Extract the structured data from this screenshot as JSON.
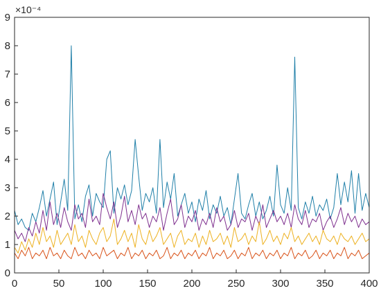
{
  "chart_data": {
    "type": "line",
    "title": "",
    "xlabel": "",
    "ylabel": "",
    "y_exponent_label": "×10⁻⁴",
    "xlim": [
      0,
      400
    ],
    "ylim": [
      0,
      9
    ],
    "x_ticks": [
      0,
      50,
      100,
      150,
      200,
      250,
      300,
      350,
      400
    ],
    "y_ticks": [
      0,
      1,
      2,
      3,
      4,
      5,
      6,
      7,
      8,
      9
    ],
    "grid": false,
    "legend": "none",
    "x_step": 4,
    "series": [
      {
        "color": "#1f7fa8",
        "values": [
          2.2,
          1.7,
          1.9,
          1.6,
          1.5,
          2.1,
          1.8,
          2.3,
          2.9,
          2.0,
          2.6,
          3.2,
          1.7,
          2.5,
          3.3,
          2.2,
          8.0,
          1.9,
          2.4,
          1.8,
          2.7,
          3.1,
          2.0,
          2.8,
          2.5,
          2.3,
          4.0,
          4.3,
          2.1,
          3.0,
          2.6,
          3.1,
          2.4,
          2.9,
          4.7,
          3.4,
          2.2,
          2.8,
          2.5,
          3.0,
          2.1,
          4.7,
          2.3,
          3.2,
          2.6,
          3.5,
          2.0,
          2.4,
          2.8,
          2.1,
          2.5,
          1.8,
          2.6,
          2.2,
          2.9,
          1.9,
          2.4,
          2.1,
          2.7,
          2.0,
          2.3,
          1.7,
          2.6,
          3.5,
          2.1,
          1.9,
          2.4,
          2.8,
          2.0,
          2.5,
          1.9,
          2.2,
          2.7,
          2.0,
          3.8,
          2.4,
          2.1,
          3.0,
          2.2,
          7.6,
          2.3,
          1.9,
          2.5,
          2.1,
          2.7,
          2.0,
          2.4,
          2.2,
          2.6,
          1.9,
          2.3,
          3.5,
          2.4,
          3.2,
          2.5,
          3.6,
          2.1,
          3.5,
          2.2,
          2.8,
          2.3
        ]
      },
      {
        "color": "#7e2f8e",
        "values": [
          1.5,
          1.2,
          1.4,
          1.1,
          1.6,
          1.3,
          1.8,
          1.4,
          2.2,
          1.5,
          2.5,
          1.7,
          2.1,
          1.6,
          2.3,
          1.8,
          1.5,
          2.4,
          1.9,
          2.1,
          1.6,
          2.6,
          1.8,
          2.0,
          1.7,
          2.8,
          2.3,
          1.9,
          2.5,
          1.6,
          2.0,
          2.7,
          1.8,
          2.2,
          1.7,
          2.4,
          1.9,
          2.1,
          1.6,
          2.0,
          1.8,
          2.3,
          1.5,
          2.1,
          2.6,
          1.7,
          1.9,
          2.4,
          1.6,
          2.0,
          1.8,
          2.2,
          1.5,
          1.9,
          1.7,
          2.1,
          1.6,
          2.3,
          1.8,
          2.0,
          1.5,
          1.7,
          2.2,
          1.6,
          1.9,
          1.8,
          2.1,
          1.5,
          2.0,
          1.7,
          2.4,
          1.6,
          1.9,
          2.2,
          1.8,
          2.0,
          1.7,
          2.1,
          1.6,
          2.4,
          1.9,
          1.7,
          2.2,
          1.6,
          1.9,
          1.8,
          2.1,
          1.5,
          1.8,
          2.0,
          1.6,
          1.9,
          2.3,
          1.7,
          2.1,
          1.8,
          2.0,
          1.6,
          1.9,
          1.7,
          1.8
        ]
      },
      {
        "color": "#edb120",
        "values": [
          0.9,
          0.7,
          1.1,
          0.8,
          1.2,
          0.9,
          1.4,
          1.0,
          1.6,
          1.1,
          1.3,
          0.9,
          1.5,
          1.0,
          1.2,
          1.4,
          1.0,
          1.7,
          1.1,
          1.3,
          0.9,
          1.5,
          1.2,
          1.0,
          1.4,
          1.6,
          1.1,
          1.3,
          1.9,
          1.0,
          1.2,
          1.5,
          1.1,
          1.4,
          0.9,
          1.7,
          1.2,
          1.0,
          1.5,
          1.1,
          1.3,
          1.6,
          1.0,
          1.2,
          1.4,
          0.9,
          1.3,
          1.5,
          1.0,
          1.2,
          1.1,
          1.4,
          0.9,
          1.3,
          1.0,
          1.5,
          1.1,
          1.2,
          1.4,
          1.0,
          1.3,
          0.9,
          1.6,
          1.1,
          1.2,
          1.4,
          1.0,
          1.3,
          1.1,
          1.8,
          1.0,
          1.2,
          1.5,
          1.1,
          1.3,
          1.0,
          1.4,
          1.2,
          1.6,
          1.1,
          1.3,
          1.0,
          1.2,
          1.4,
          1.1,
          1.3,
          1.0,
          1.5,
          1.2,
          1.1,
          1.3,
          1.0,
          1.4,
          1.2,
          1.1,
          1.3,
          1.0,
          1.2,
          1.4,
          1.1,
          1.2
        ]
      },
      {
        "color": "#d95319",
        "values": [
          0.7,
          0.5,
          0.8,
          0.6,
          0.9,
          0.5,
          0.7,
          0.6,
          0.8,
          0.5,
          0.9,
          0.6,
          0.7,
          0.5,
          0.8,
          0.6,
          0.5,
          0.9,
          0.6,
          0.7,
          0.5,
          0.8,
          0.6,
          0.7,
          0.5,
          0.9,
          0.6,
          0.7,
          0.8,
          0.5,
          0.7,
          0.6,
          0.9,
          0.5,
          0.7,
          0.6,
          0.8,
          0.5,
          0.7,
          0.6,
          0.8,
          0.5,
          0.6,
          0.9,
          0.5,
          0.7,
          0.6,
          0.8,
          0.5,
          0.7,
          0.6,
          0.8,
          0.5,
          0.7,
          0.6,
          0.9,
          0.5,
          0.7,
          0.6,
          0.8,
          0.5,
          0.6,
          0.8,
          0.5,
          0.7,
          0.6,
          0.9,
          0.5,
          0.7,
          0.6,
          0.8,
          0.5,
          0.7,
          0.6,
          0.8,
          0.5,
          0.7,
          0.6,
          0.9,
          0.5,
          0.7,
          0.6,
          0.8,
          0.5,
          0.6,
          0.8,
          0.5,
          0.7,
          0.6,
          0.8,
          0.5,
          0.7,
          0.6,
          0.9,
          0.5,
          0.7,
          0.6,
          0.8,
          0.5,
          0.6,
          0.7
        ]
      }
    ]
  }
}
